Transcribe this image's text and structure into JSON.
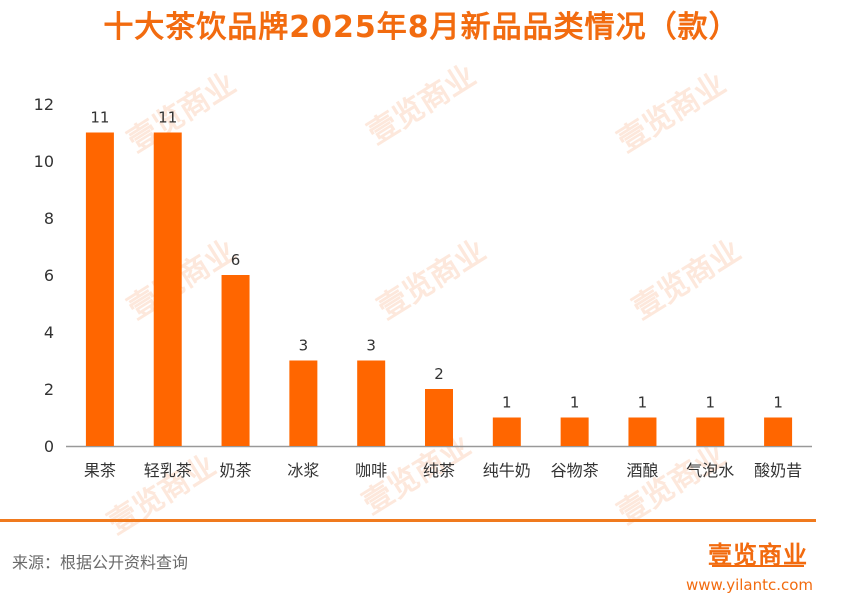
{
  "title": "十大茶饮品牌2025年8月新品品类情况（款）",
  "source": "来源：根据公开资料查询",
  "logo_text": "壹览商业",
  "url": "www.yilantc.com",
  "watermark": "壹览商业",
  "colors": {
    "accent": "#f26b0f",
    "bar": "#ff6600",
    "axis": "#999999",
    "text": "#333333"
  },
  "chart_data": {
    "type": "bar",
    "title": "十大茶饮品牌2025年8月新品品类情况（款）",
    "xlabel": "",
    "ylabel": "",
    "categories": [
      "果茶",
      "轻乳茶",
      "奶茶",
      "冰浆",
      "咖啡",
      "纯茶",
      "纯牛奶",
      "谷物茶",
      "酒酿",
      "气泡水",
      "酸奶昔"
    ],
    "values": [
      11,
      11,
      6,
      3,
      3,
      2,
      1,
      1,
      1,
      1,
      1
    ],
    "ylim": [
      0,
      12
    ],
    "yticks": [
      0,
      2,
      4,
      6,
      8,
      10,
      12
    ],
    "grid": false,
    "legend": "none"
  }
}
